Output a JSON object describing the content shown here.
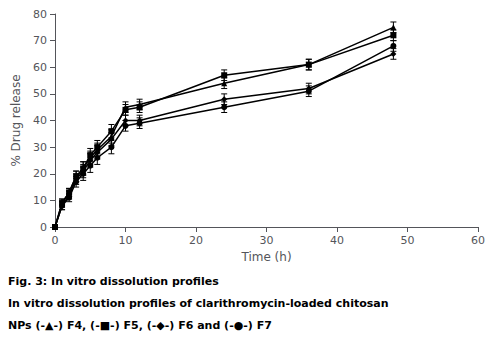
{
  "chart_data": {
    "type": "line",
    "x": [
      0,
      1,
      2,
      3,
      4,
      5,
      6,
      8,
      10,
      12,
      24,
      36,
      48
    ],
    "series": [
      {
        "name": "F4",
        "color": "#000000",
        "marker": "triangle",
        "values": [
          0,
          9,
          13,
          19,
          22,
          26,
          29,
          34,
          45,
          46,
          54,
          61,
          75
        ],
        "errors": [
          0,
          1.5,
          1.5,
          2.0,
          2.5,
          2.5,
          2.5,
          2.5,
          2.0,
          2.0,
          2.0,
          2.0,
          2.0
        ]
      },
      {
        "name": "F5",
        "color": "#000000",
        "marker": "square",
        "values": [
          0,
          9,
          13,
          19,
          22,
          27,
          30,
          36,
          44,
          45,
          57,
          61,
          72
        ],
        "errors": [
          0,
          1.5,
          1.5,
          2.0,
          2.5,
          2.5,
          2.5,
          2.5,
          2.0,
          2.0,
          2.0,
          2.0,
          2.0
        ]
      },
      {
        "name": "F7",
        "color": "#000000",
        "marker": "circle",
        "values": [
          0,
          8,
          11,
          17,
          20,
          23,
          26,
          30,
          38,
          39,
          45,
          51,
          68
        ],
        "errors": [
          0,
          1.5,
          1.5,
          2.0,
          2.5,
          2.5,
          2.5,
          2.5,
          2.0,
          2.0,
          2.0,
          2.0,
          2.0
        ]
      },
      {
        "name": "F6",
        "color": "#000000",
        "marker": "diamond",
        "values": [
          0,
          8,
          12,
          18,
          21,
          25,
          28,
          33,
          40,
          40,
          48,
          52,
          65
        ],
        "errors": [
          0,
          1.5,
          1.5,
          2.0,
          2.5,
          2.5,
          2.5,
          2.5,
          2.0,
          2.0,
          2.0,
          2.0,
          2.0
        ]
      }
    ],
    "xlabel": "Time (h)",
    "ylabel": "% Drug release",
    "xlim": [
      0,
      60
    ],
    "ylim": [
      0,
      80
    ],
    "xticks": [
      0,
      10,
      20,
      30,
      40,
      50,
      60
    ],
    "yticks": [
      0,
      10,
      20,
      30,
      40,
      50,
      60,
      70,
      80
    ],
    "grid": false,
    "annotations": [
      "Fig. 3: In vitro dissolution profiles",
      "In vitro dissolution profiles of clarithromycin-loaded chitosan",
      "NPs (-▲-) F4, (-■-) F5, (-◆-) F6 and (-●-) F7"
    ]
  }
}
